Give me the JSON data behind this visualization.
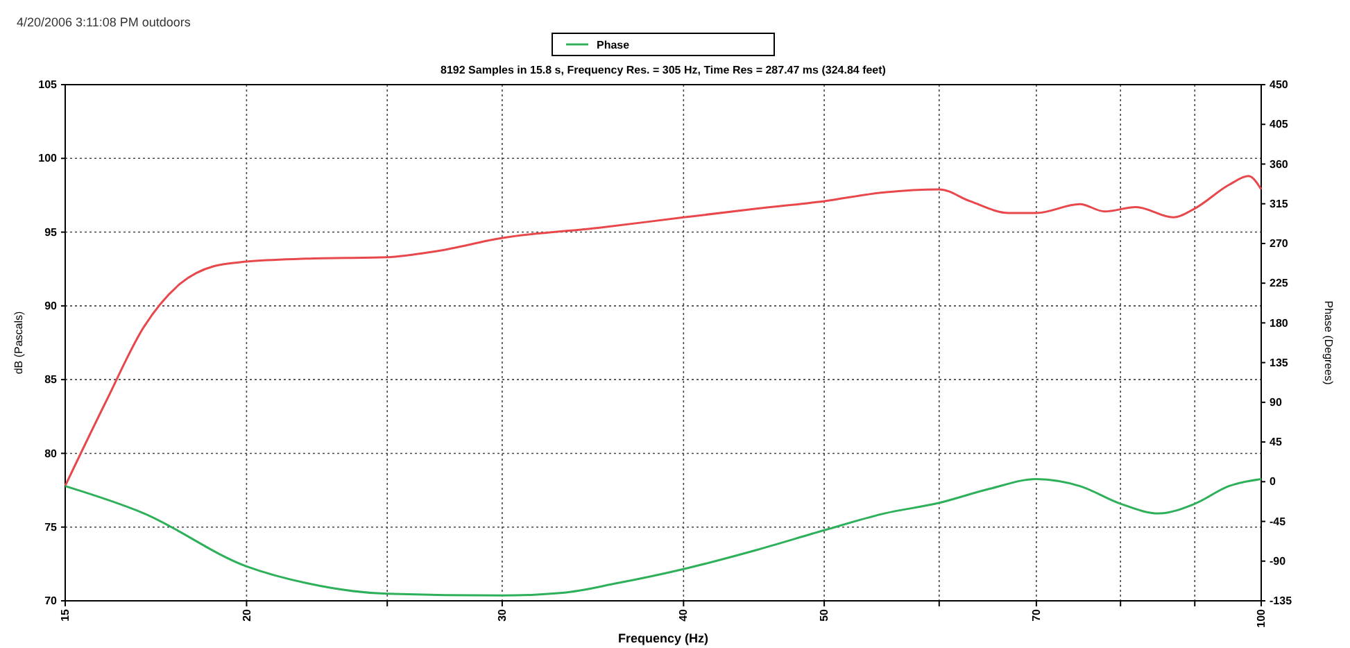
{
  "chart_data": {
    "type": "line",
    "title": "8192 Samples in 15.8 s, Frequency Res. = 305 Hz, Time Res = 287.47 ms (324.84 feet)",
    "annotations": [
      "4/20/2006 3:11:08 PM outdoors"
    ],
    "xlabel": "Frequency (Hz)",
    "ylabel": "dB (Pascals)",
    "y2label": "Phase (Degrees)",
    "log": "x",
    "grid": true,
    "legend": "top",
    "line_style": "solid",
    "marker": "none",
    "xlim": [
      15,
      100
    ],
    "xticks": [
      15,
      20,
      {
        "value": 25,
        "label": null
      },
      30,
      40,
      50,
      {
        "value": 60,
        "label": null
      },
      70,
      {
        "value": 80,
        "label": null
      },
      {
        "value": 90,
        "label": null
      },
      100
    ],
    "ylim": [
      70,
      105
    ],
    "yticks": [
      70,
      75,
      80,
      85,
      90,
      95,
      100,
      105
    ],
    "y2lim": [
      -135,
      450
    ],
    "y2ticks": [
      -135,
      -90,
      -45,
      0,
      45,
      90,
      135,
      180,
      225,
      270,
      315,
      360,
      405,
      450
    ],
    "series": [
      {
        "color": "#e8474c",
        "x": [
          15,
          16,
          17,
          18,
          19,
          20,
          22,
          25,
          27,
          30,
          35,
          40,
          45,
          50,
          55,
          60,
          63,
          67,
          70,
          75,
          78,
          82,
          87,
          90,
          95,
          98,
          100
        ],
        "values": [
          77.8,
          83.5,
          88.6,
          91.5,
          92.7,
          93,
          93.2,
          93.3,
          93.7,
          94.6,
          95.3,
          96,
          96.6,
          97.1,
          97.7,
          97.9,
          97.1,
          96.3,
          96.3,
          96.9,
          96.4,
          96.7,
          96,
          96.6,
          98.2,
          98.8,
          97.9
        ]
      },
      {
        "name": "Phase",
        "axis": "y2",
        "color": "#2eb05a",
        "x": [
          15,
          17,
          20,
          22,
          25,
          30,
          33,
          36,
          40,
          45,
          50,
          55,
          60,
          65,
          70,
          75,
          80,
          85,
          90,
          95,
          100
        ],
        "values": [
          -5,
          -36,
          -96,
          -115,
          -127,
          -129,
          -126,
          -115,
          -99,
          -77,
          -55,
          -36,
          -24,
          -8,
          3,
          -5,
          -25,
          -36,
          -25,
          -5,
          3
        ]
      }
    ]
  }
}
